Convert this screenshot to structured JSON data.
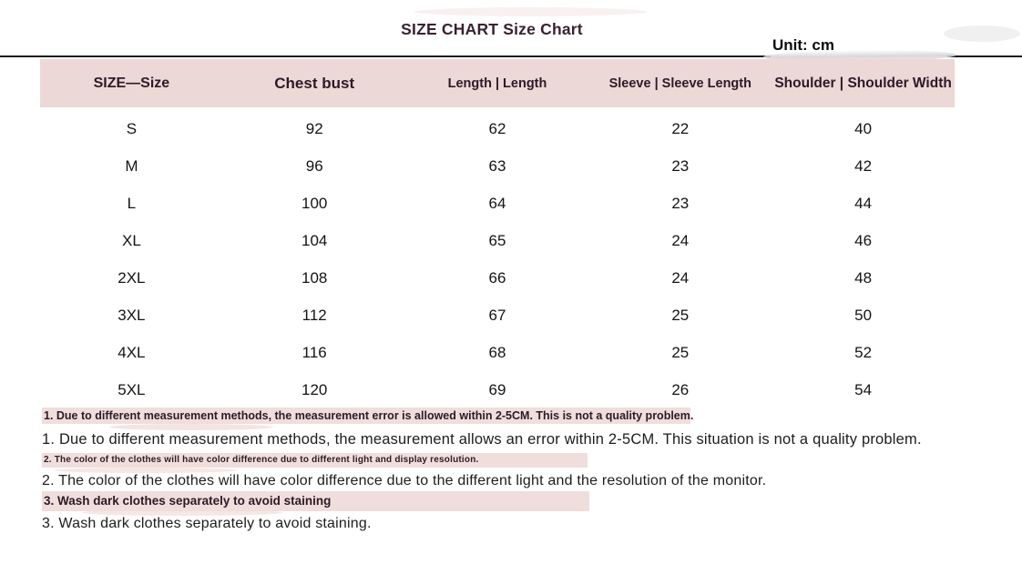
{
  "title": "SIZE CHART Size Chart",
  "unit_label": "Unit: cm",
  "table": {
    "headers": [
      "SIZE—Size",
      "Chest bust",
      "Length | Length",
      "Sleeve | Sleeve Length",
      "Shoulder | Shoulder Width"
    ],
    "rows": [
      {
        "size": "S",
        "chest": "92",
        "length": "62",
        "sleeve": "22",
        "shoulder": "40"
      },
      {
        "size": "M",
        "chest": "96",
        "length": "63",
        "sleeve": "23",
        "shoulder": "42"
      },
      {
        "size": "L",
        "chest": "100",
        "length": "64",
        "sleeve": "23",
        "shoulder": "44"
      },
      {
        "size": "XL",
        "chest": "104",
        "length": "65",
        "sleeve": "24",
        "shoulder": "46"
      },
      {
        "size": "2XL",
        "chest": "108",
        "length": "66",
        "sleeve": "24",
        "shoulder": "48"
      },
      {
        "size": "3XL",
        "chest": "112",
        "length": "67",
        "sleeve": "25",
        "shoulder": "50"
      },
      {
        "size": "4XL",
        "chest": "116",
        "length": "68",
        "sleeve": "25",
        "shoulder": "52"
      },
      {
        "size": "5XL",
        "chest": "120",
        "length": "69",
        "sleeve": "26",
        "shoulder": "54"
      }
    ]
  },
  "notes": [
    {
      "highlight": "1. Due to different measurement methods, the measurement error is allowed within 2-5CM. This is not a quality problem.",
      "text": "1. Due to different measurement methods, the measurement allows an error within 2-5CM. This situation is not a quality problem."
    },
    {
      "highlight": "2. The color of the clothes will have color difference due to different light and display resolution.",
      "text": "2. The color of the clothes will have color difference due to the different light and the resolution of the monitor."
    },
    {
      "highlight": "3. Wash dark clothes separately to avoid staining",
      "text": "3. Wash dark clothes separately to avoid staining."
    }
  ],
  "colors": {
    "header_bg": "#ecd8d6",
    "highlight_bg": "#f0dedc",
    "title_text": "#3a2133",
    "header_text": "#2c1a28",
    "body_text": "#141414",
    "rule_color": "#1c1c1c"
  }
}
